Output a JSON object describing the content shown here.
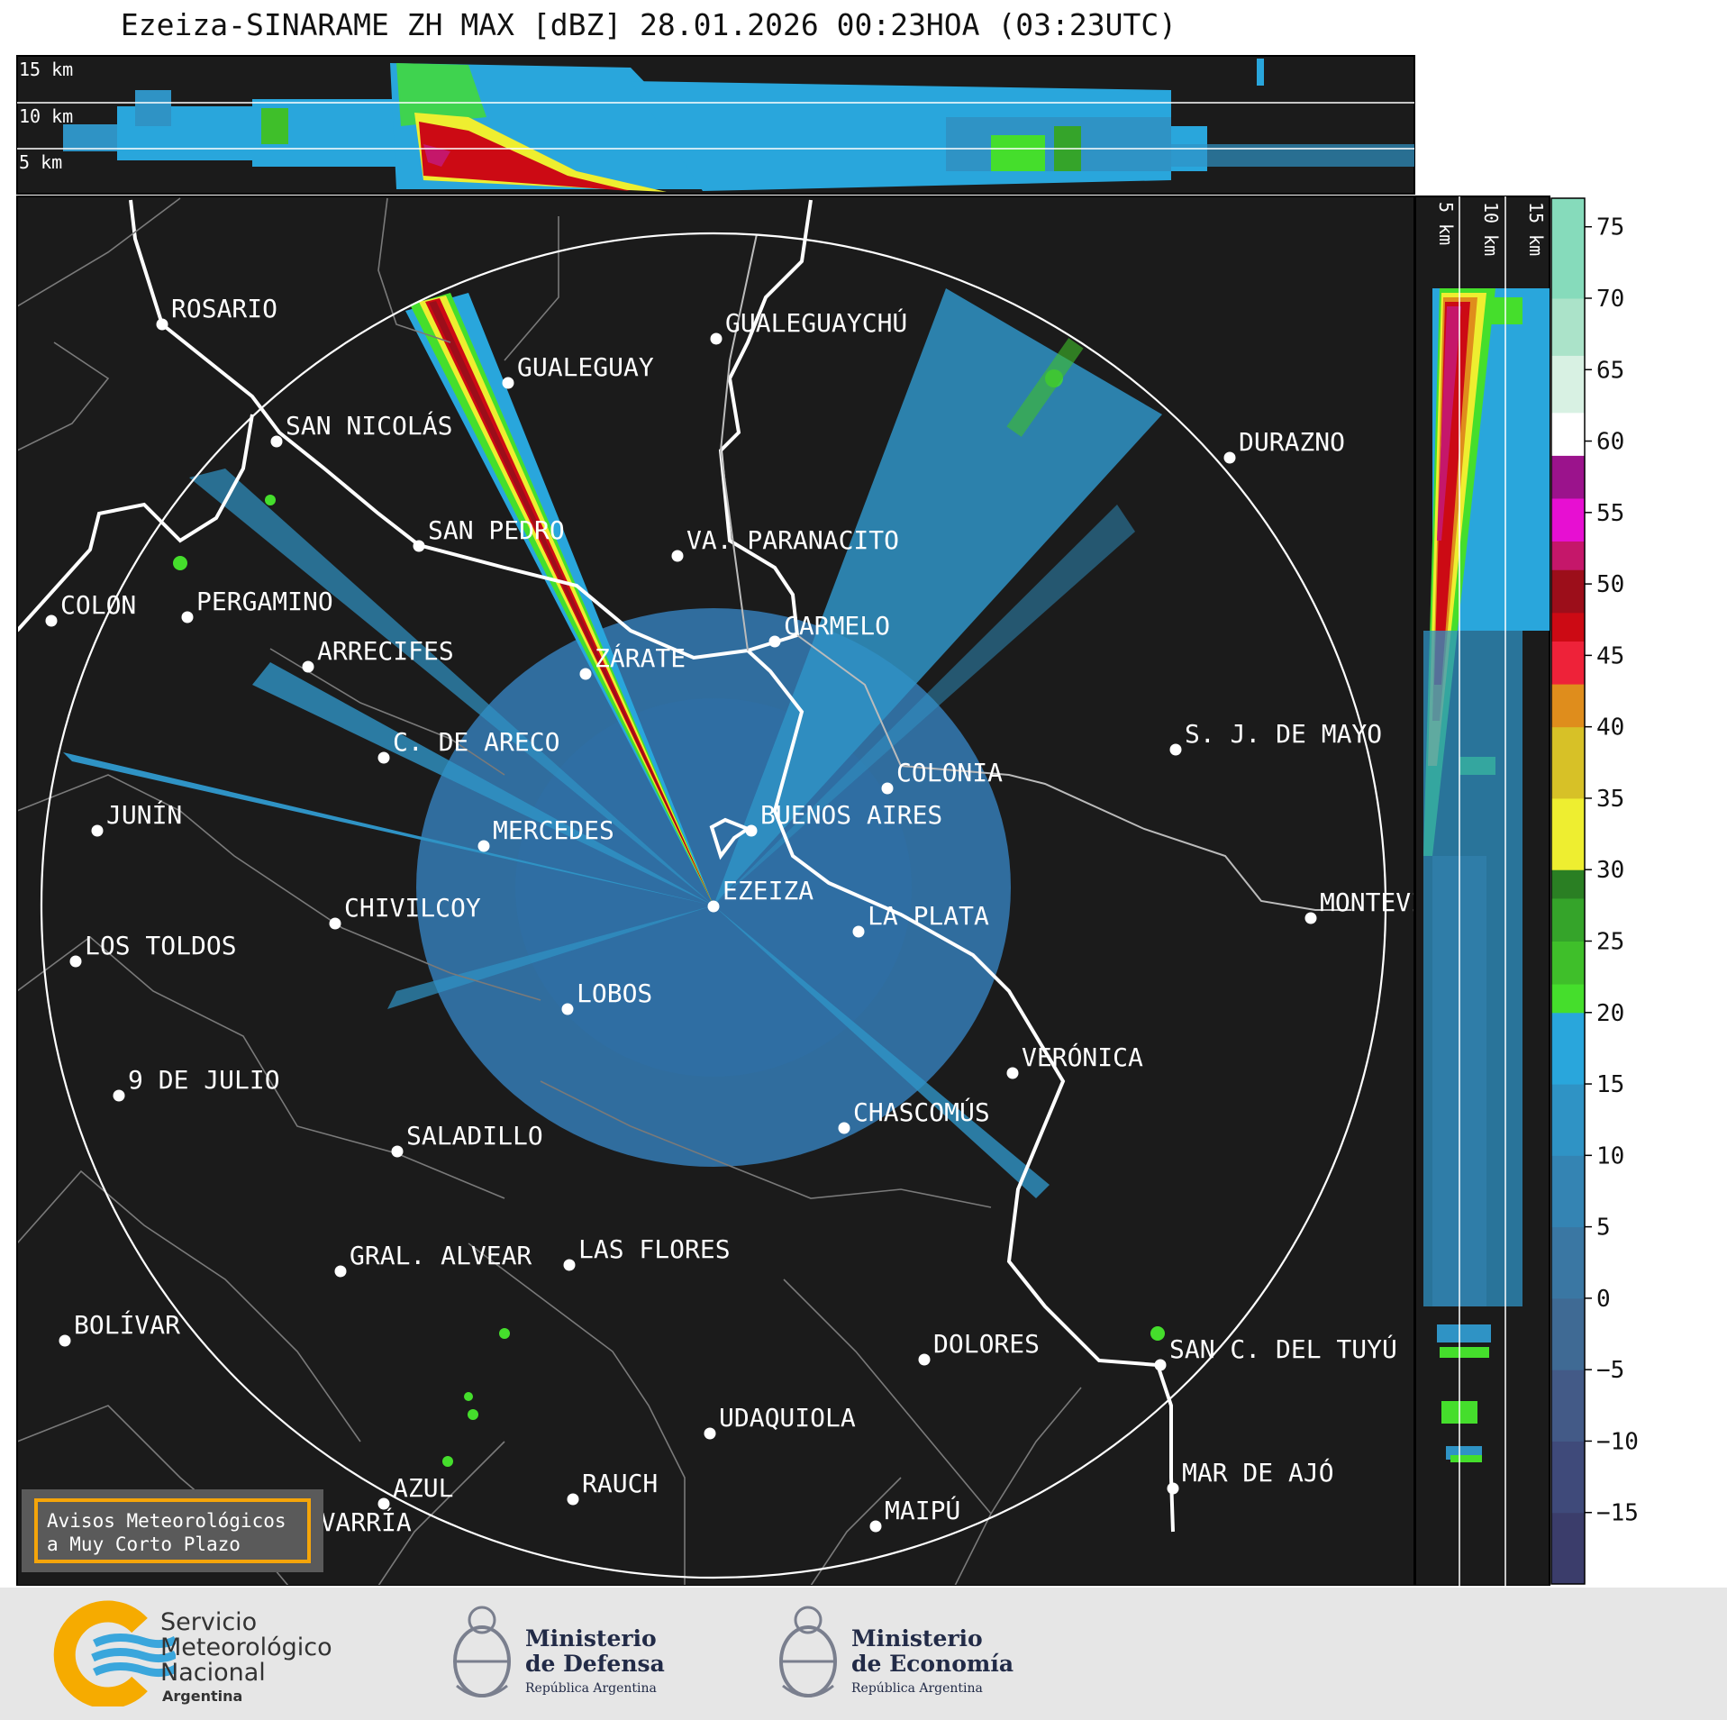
{
  "title": "Ezeiza-SINARAME ZH MAX [dBZ] 28.01.2026 00:23HOA (03:23UTC)",
  "top_panel": {
    "altitude_labels": [
      "15 km",
      "10 km",
      "5 km"
    ]
  },
  "side_panel": {
    "altitude_labels": [
      "5 km",
      "10 km",
      "15 km"
    ]
  },
  "colorbar": {
    "unit": "dBZ",
    "ticks": [
      "75",
      "70",
      "65",
      "60",
      "55",
      "50",
      "45",
      "40",
      "35",
      "30",
      "25",
      "20",
      "15",
      "10",
      "5",
      "0",
      "−5",
      "−10",
      "−15"
    ],
    "range": [
      -20,
      77
    ],
    "colors": {
      "-20": "#3b3d6b",
      "-15": "#3f4a7a",
      "-10": "#435a87",
      "-5": "#3f6a94",
      "0": "#3a77a3",
      "5": "#3484b3",
      "10": "#2f93c5",
      "15": "#29a6dc",
      "20": "#45de2c",
      "22": "#3fbf2a",
      "25": "#35a42a",
      "28": "#2a7f23",
      "30": "#eeee30",
      "35": "#d7c127",
      "40": "#df8d1c",
      "43": "#ee2239",
      "46": "#cc0a14",
      "48": "#9c0e1a",
      "51": "#c5176a",
      "53": "#e70fd2",
      "56": "#9b138c",
      "59": "#ffffff",
      "62": "#d8f1e3",
      "66": "#abe3c9",
      "70": "#86dbbb"
    }
  },
  "cities": [
    {
      "name": "ROSARIO"
    },
    {
      "name": "GUALEGUAYCHÚ"
    },
    {
      "name": "GUALEGUAY"
    },
    {
      "name": "SAN NICOLÁS"
    },
    {
      "name": "DURAZNO"
    },
    {
      "name": "SAN PEDRO"
    },
    {
      "name": "VA. PARANACITO"
    },
    {
      "name": "COLON"
    },
    {
      "name": "PERGAMINO"
    },
    {
      "name": "CARMELO"
    },
    {
      "name": "ARRECIFES"
    },
    {
      "name": "ZÁRATE"
    },
    {
      "name": "S. J. DE MAYO"
    },
    {
      "name": "C. DE ARECO"
    },
    {
      "name": "COLONIA"
    },
    {
      "name": "BUENOS AIRES"
    },
    {
      "name": "JUNÍN"
    },
    {
      "name": "MERCEDES"
    },
    {
      "name": "EZEIZA"
    },
    {
      "name": "MONTEVIDEO"
    },
    {
      "name": "CHIVILCOY"
    },
    {
      "name": "LA PLATA"
    },
    {
      "name": "LOS TOLDOS"
    },
    {
      "name": "LOBOS"
    },
    {
      "name": "VERÓNICA"
    },
    {
      "name": "9 DE JULIO"
    },
    {
      "name": "CHASCOMÚS"
    },
    {
      "name": "SALADILLO"
    },
    {
      "name": "GRAL. ALVEAR"
    },
    {
      "name": "LAS FLORES"
    },
    {
      "name": "BOLÍVAR"
    },
    {
      "name": "DOLORES"
    },
    {
      "name": "SAN C. DEL TUYÚ"
    },
    {
      "name": "UDAQUIOLA"
    },
    {
      "name": "MAR DE AJÓ"
    },
    {
      "name": "RAUCH"
    },
    {
      "name": "AZUL"
    },
    {
      "name": "OLAVARRÍA"
    },
    {
      "name": "MAIPÚ"
    }
  ],
  "warning_box": {
    "line1": "Avisos Meteorológicos",
    "line2": "a Muy Corto Plazo",
    "border_color": "#f5a50a"
  },
  "logos": {
    "smn": {
      "line1": "Servicio",
      "line2": "Meteorológico",
      "line3": "Nacional",
      "line4": "Argentina"
    },
    "defensa": {
      "line1": "Ministerio",
      "line2": "de Defensa",
      "line3": "República Argentina"
    },
    "economia": {
      "line1": "Ministerio",
      "line2": "de Economía",
      "line3": "República Argentina"
    }
  }
}
